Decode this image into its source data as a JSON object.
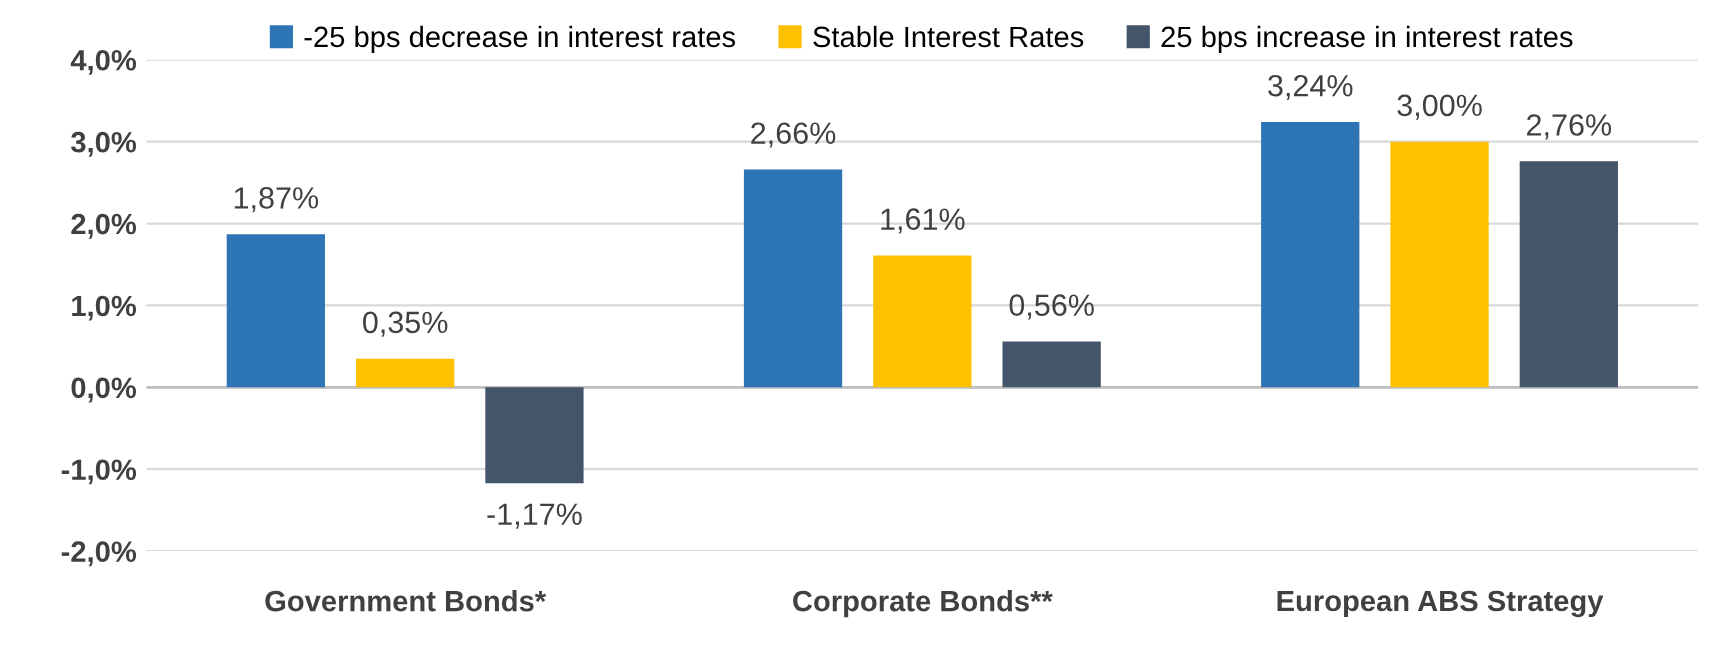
{
  "chart_data": {
    "type": "bar",
    "categories": [
      "Government Bonds*",
      "Corporate Bonds**",
      "European ABS Strategy"
    ],
    "series": [
      {
        "name": "-25 bps decrease in interest rates",
        "color": "#2e75b6",
        "values": [
          1.87,
          2.66,
          3.24
        ],
        "value_labels": [
          "1,87%",
          "2,66%",
          "3,24%"
        ]
      },
      {
        "name": "Stable Interest Rates",
        "color": "#ffc000",
        "values": [
          0.35,
          1.61,
          3.0
        ],
        "value_labels": [
          "0,35%",
          "1,61%",
          "3,00%"
        ]
      },
      {
        "name": "25 bps increase in interest rates",
        "color": "#44546a",
        "values": [
          -1.17,
          0.56,
          2.76
        ],
        "value_labels": [
          "-1,17%",
          "0,56%",
          "2,76%"
        ]
      }
    ],
    "ylim": [
      -2.0,
      4.0
    ],
    "yticks": [
      {
        "value": -2.0,
        "label": "-2,0%"
      },
      {
        "value": -1.0,
        "label": "-1,0%"
      },
      {
        "value": 0.0,
        "label": "0,0%"
      },
      {
        "value": 1.0,
        "label": "1,0%"
      },
      {
        "value": 2.0,
        "label": "2,0%"
      },
      {
        "value": 3.0,
        "label": "3,0%"
      },
      {
        "value": 4.0,
        "label": "4,0%"
      }
    ],
    "grid": "y",
    "legend": "top"
  }
}
